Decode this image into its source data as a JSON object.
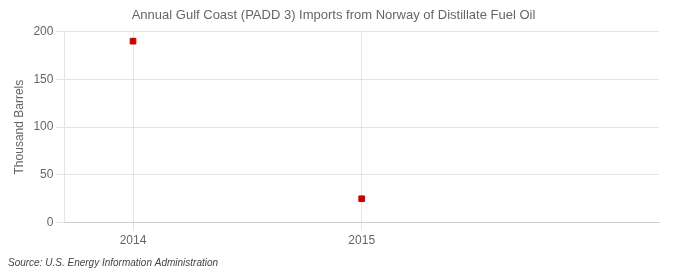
{
  "chart_data": {
    "type": "scatter",
    "title": "Annual Gulf Coast (PADD 3) Imports from Norway of Distillate Fuel Oil",
    "ylabel": "Thousand Barrels",
    "annotation": "Source: U.S. Energy Information Administration",
    "x": [
      2014,
      2015
    ],
    "values": [
      190,
      25
    ],
    "color": "#cc0000",
    "marker": "square",
    "xlim": [
      2013.7,
      2016.3
    ],
    "xticks": [
      2014,
      2015
    ],
    "ylim": [
      0,
      200
    ],
    "yticks": [
      0,
      50,
      100,
      150,
      200
    ],
    "grid": true
  }
}
